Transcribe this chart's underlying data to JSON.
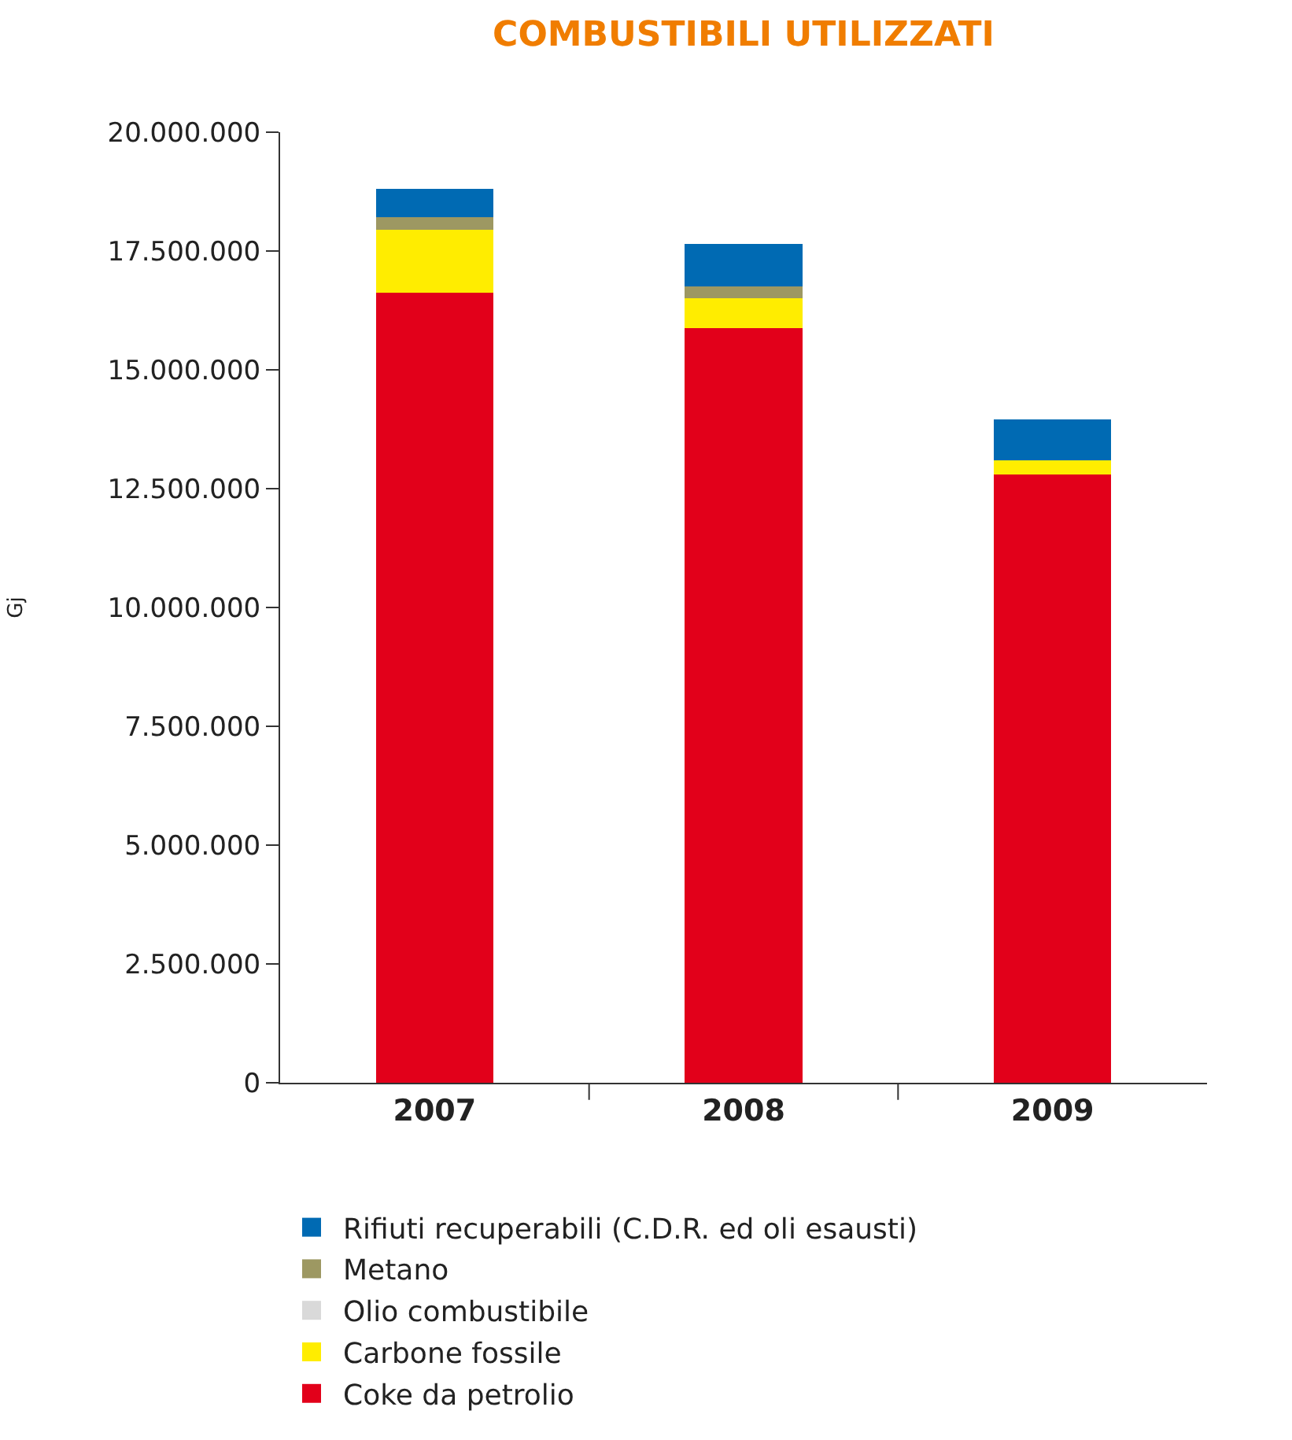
{
  "chart_data": {
    "type": "bar",
    "title": "COMBUSTIBILI UTILIZZATI",
    "ylabel": "Gj",
    "stacked": true,
    "legend": "bottom",
    "grid": false,
    "categories": [
      "2007",
      "2008",
      "2009"
    ],
    "series": [
      {
        "name": "Coke da petrolio",
        "color": "#e2001a",
        "values": [
          16630000,
          15870000,
          12790000
        ]
      },
      {
        "name": "Carbone fossile",
        "color": "#ffed00",
        "values": [
          1320000,
          630000,
          300000
        ]
      },
      {
        "name": "Olio combustibile",
        "color": "#d9d9d9",
        "values": [
          0,
          0,
          0
        ]
      },
      {
        "name": "Metano",
        "color": "#9d9862",
        "values": [
          260000,
          260000,
          0
        ]
      },
      {
        "name": "Rifiuti recuperabili (C.D.R. ed oli esausti)",
        "color": "#006ab3",
        "values": [
          600000,
          890000,
          860000
        ]
      }
    ],
    "ylim": [
      0,
      20000000
    ],
    "yticks": [
      {
        "value": 0,
        "label": "0"
      },
      {
        "value": 2500000,
        "label": "2.500.000"
      },
      {
        "value": 5000000,
        "label": "5.000.000"
      },
      {
        "value": 7500000,
        "label": "7.500.000"
      },
      {
        "value": 10000000,
        "label": "10.000.000"
      },
      {
        "value": 12500000,
        "label": "12.500.000"
      },
      {
        "value": 15000000,
        "label": "15.000.000"
      },
      {
        "value": 17500000,
        "label": "17.500.000"
      },
      {
        "value": 20000000,
        "label": "20.000.000"
      }
    ]
  }
}
